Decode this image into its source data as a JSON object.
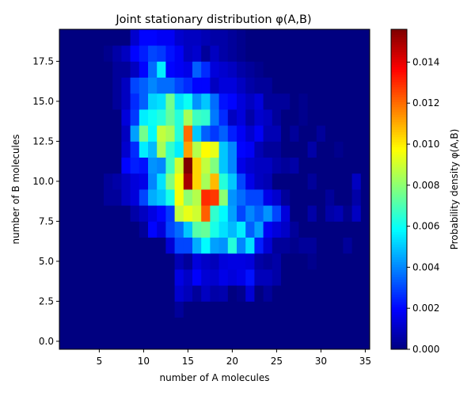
{
  "chart_data": {
    "type": "heatmap",
    "title": "Joint stationary distribution φ(A,B)",
    "xlabel": "number of A molecules",
    "ylabel": "number of B molecules",
    "xlim": [
      0.5,
      35.5
    ],
    "ylim": [
      -0.5,
      19.5
    ],
    "x_ticks": [
      5,
      10,
      15,
      20,
      25,
      30,
      35
    ],
    "x_tick_labels": [
      "5",
      "10",
      "15",
      "20",
      "25",
      "30",
      "35"
    ],
    "y_ticks": [
      0.0,
      2.5,
      5.0,
      7.5,
      10.0,
      12.5,
      15.0,
      17.5
    ],
    "y_tick_labels": [
      "0.0",
      "2.5",
      "5.0",
      "7.5",
      "10.0",
      "12.5",
      "15.0",
      "17.5"
    ],
    "x_bins": [
      1,
      2,
      3,
      4,
      5,
      6,
      7,
      8,
      9,
      10,
      11,
      12,
      13,
      14,
      15,
      16,
      17,
      18,
      19,
      20,
      21,
      22,
      23,
      24,
      25,
      26,
      27,
      28,
      29,
      30,
      31,
      32,
      33,
      34,
      35
    ],
    "y_bins": [
      0,
      1,
      2,
      3,
      4,
      5,
      6,
      7,
      8,
      9,
      10,
      11,
      12,
      13,
      14,
      15,
      16,
      17,
      18,
      19
    ],
    "colormap": "jet",
    "colorbar": {
      "label": "Probability density φ(A,B)",
      "range": [
        0,
        0.0156
      ],
      "ticks": [
        0.0,
        0.002,
        0.004,
        0.006,
        0.008,
        0.01,
        0.012,
        0.014
      ],
      "tick_labels": [
        "0.000",
        "0.002",
        "0.004",
        "0.006",
        "0.008",
        "0.010",
        "0.012",
        "0.014"
      ]
    },
    "values": [
      [
        0,
        0,
        0,
        0,
        0,
        0,
        0,
        0,
        0,
        0,
        0,
        0,
        0,
        0,
        0,
        0,
        0,
        0,
        0,
        0,
        0,
        0,
        0,
        0,
        0,
        0,
        0,
        0,
        0,
        0,
        0,
        0,
        0,
        0,
        0
      ],
      [
        0,
        0,
        0,
        0,
        0,
        0,
        0,
        0,
        0,
        0,
        0,
        0,
        0,
        0,
        0,
        0,
        0,
        0,
        0,
        0,
        0,
        0,
        0,
        0,
        0,
        0,
        0,
        0,
        0,
        0,
        0,
        0,
        0,
        0,
        0
      ],
      [
        0,
        0,
        0,
        0,
        0,
        0,
        0,
        0,
        0,
        0,
        0,
        0,
        0,
        0.0004,
        0,
        0,
        0,
        0,
        0,
        0,
        0,
        0,
        0,
        0,
        0,
        0,
        0,
        0,
        0,
        0,
        0,
        0,
        0,
        0,
        0
      ],
      [
        0,
        0,
        0,
        0,
        0,
        0,
        0,
        0,
        0,
        0,
        0,
        0,
        0,
        0.0012,
        0.0009,
        0.0004,
        0.001,
        0.0006,
        0.0007,
        0,
        0.0002,
        0.0013,
        0,
        0.0004,
        0,
        0,
        0,
        0,
        0,
        0,
        0,
        0,
        0,
        0,
        0
      ],
      [
        0,
        0,
        0,
        0,
        0,
        0,
        0,
        0,
        0,
        0,
        0,
        0,
        0,
        0.0015,
        0.0011,
        0.0019,
        0.0013,
        0.0012,
        0.0016,
        0.0014,
        0.0016,
        0.0022,
        0.0009,
        0.0009,
        0.0006,
        0,
        0,
        0,
        0,
        0,
        0,
        0,
        0,
        0,
        0
      ],
      [
        0,
        0,
        0,
        0,
        0,
        0,
        0,
        0,
        0,
        0,
        0,
        0,
        0,
        0.0008,
        0.0004,
        0.0014,
        0.0011,
        0.0009,
        0.0014,
        0.0015,
        0.0015,
        0.0014,
        0.0006,
        0.0004,
        0.0006,
        0,
        0,
        0,
        0.0002,
        0,
        0,
        0,
        0,
        0,
        0
      ],
      [
        0,
        0,
        0,
        0,
        0,
        0,
        0,
        0,
        0,
        0,
        0,
        0,
        0.0013,
        0.003,
        0.003,
        0.0046,
        0.0058,
        0.0044,
        0.0042,
        0.0064,
        0.004,
        0.0054,
        0.0024,
        0.0013,
        0.0004,
        0.0004,
        0.0002,
        0.0004,
        0.0004,
        0,
        0,
        0,
        0.0004,
        0,
        0
      ],
      [
        0,
        0,
        0,
        0,
        0,
        0,
        0,
        0,
        0,
        0.0004,
        0.002,
        0.0014,
        0.003,
        0.0036,
        0.005,
        0.0072,
        0.0074,
        0.0062,
        0.0054,
        0.0048,
        0.0056,
        0.0034,
        0.0044,
        0.0018,
        0.0014,
        0.0011,
        0.0004,
        0,
        0,
        0,
        0,
        0,
        0,
        0,
        0
      ],
      [
        0,
        0,
        0,
        0,
        0,
        0,
        0,
        0,
        0.0006,
        0.001,
        0.0015,
        0.002,
        0.0028,
        0.0088,
        0.0094,
        0.009,
        0.0122,
        0.0066,
        0.0058,
        0.0044,
        0.003,
        0.004,
        0.0034,
        0.0042,
        0.003,
        0.0014,
        0,
        0,
        0.0006,
        0,
        0.0006,
        0.0008,
        0.0002,
        0.001,
        0
      ],
      [
        0,
        0,
        0,
        0,
        0,
        0.0004,
        0.0004,
        0.001,
        0.0014,
        0.003,
        0.0046,
        0.005,
        0.0062,
        0.0096,
        0.008,
        0.0086,
        0.013,
        0.0128,
        0.008,
        0.0042,
        0.0036,
        0.003,
        0.003,
        0.0016,
        0.0012,
        0.0004,
        0,
        0,
        0,
        0,
        0.0004,
        0,
        0,
        0.0006,
        0
      ],
      [
        0,
        0,
        0,
        0,
        0,
        0.0004,
        0.0006,
        0.001,
        0.0014,
        0.0016,
        0.004,
        0.0054,
        0.0078,
        0.0096,
        0.015,
        0.0104,
        0.0084,
        0.0108,
        0.0064,
        0.005,
        0.003,
        0.0016,
        0.001,
        0.0008,
        0,
        0,
        0,
        0,
        0.0004,
        0,
        0,
        0,
        0,
        0.001,
        0
      ],
      [
        0,
        0,
        0,
        0,
        0,
        0,
        0,
        0.002,
        0.0024,
        0.0022,
        0.0042,
        0.004,
        0.0068,
        0.009,
        0.0156,
        0.0104,
        0.0088,
        0.0078,
        0.005,
        0.004,
        0.0016,
        0.0012,
        0.001,
        0.001,
        0.0006,
        0.0004,
        0.0006,
        0,
        0,
        0,
        0,
        0,
        0,
        0,
        0
      ],
      [
        0,
        0,
        0,
        0,
        0,
        0,
        0,
        0.0012,
        0.0026,
        0.0056,
        0.0048,
        0.0084,
        0.0066,
        0.0056,
        0.0112,
        0.0086,
        0.0098,
        0.0094,
        0.005,
        0.004,
        0.002,
        0.0018,
        0.0008,
        0.0004,
        0.0004,
        0,
        0,
        0,
        0.0006,
        0,
        0,
        0.0002,
        0,
        0,
        0
      ],
      [
        0,
        0,
        0,
        0,
        0,
        0,
        0,
        0.001,
        0.0044,
        0.0076,
        0.0058,
        0.0088,
        0.0084,
        0.0064,
        0.012,
        0.005,
        0.0034,
        0.0028,
        0.0034,
        0.0024,
        0.0018,
        0.0012,
        0.0018,
        0.0008,
        0.0008,
        0,
        0.0004,
        0,
        0,
        0.0004,
        0,
        0,
        0,
        0,
        0
      ],
      [
        0,
        0,
        0,
        0,
        0,
        0,
        0,
        0.0014,
        0.0028,
        0.0056,
        0.006,
        0.0064,
        0.0074,
        0.0064,
        0.0084,
        0.0068,
        0.0066,
        0.0038,
        0.0026,
        0.001,
        0.0014,
        0.0006,
        0.0012,
        0.001,
        0.0004,
        0,
        0,
        0.0002,
        0,
        0,
        0,
        0,
        0,
        0,
        0
      ],
      [
        0,
        0,
        0,
        0,
        0,
        0,
        0.0004,
        0.001,
        0.0026,
        0.0034,
        0.0052,
        0.0054,
        0.0076,
        0.0054,
        0.006,
        0.0042,
        0.005,
        0.0036,
        0.0022,
        0.002,
        0.0014,
        0.001,
        0.0014,
        0.0004,
        0.0004,
        0.0004,
        0,
        0.0002,
        0,
        0,
        0,
        0,
        0,
        0,
        0
      ],
      [
        0,
        0,
        0,
        0,
        0,
        0,
        0.0004,
        0.001,
        0.003,
        0.0034,
        0.004,
        0.0036,
        0.0036,
        0.003,
        0.0026,
        0.002,
        0.002,
        0.001,
        0.0014,
        0.0014,
        0.001,
        0.0006,
        0.0004,
        0.0004,
        0,
        0,
        0,
        0,
        0,
        0,
        0,
        0,
        0,
        0,
        0
      ],
      [
        0,
        0,
        0,
        0,
        0,
        0,
        0.0004,
        0.0004,
        0.001,
        0.002,
        0.0036,
        0.0056,
        0.002,
        0.0018,
        0.0016,
        0.0034,
        0.0026,
        0.0014,
        0.0012,
        0.001,
        0.0006,
        0.0004,
        0.0002,
        0,
        0,
        0,
        0,
        0,
        0,
        0,
        0,
        0,
        0,
        0,
        0
      ],
      [
        0,
        0,
        0,
        0,
        0,
        0.0002,
        0.0006,
        0.001,
        0.002,
        0.0024,
        0.003,
        0.0028,
        0.0022,
        0.0018,
        0.001,
        0.0012,
        0.0004,
        0.001,
        0.0006,
        0.0004,
        0.0002,
        0,
        0,
        0,
        0,
        0,
        0,
        0,
        0,
        0,
        0,
        0,
        0,
        0,
        0
      ],
      [
        0,
        0,
        0,
        0,
        0,
        0,
        0,
        0,
        0.0012,
        0.002,
        0.002,
        0.0018,
        0.0018,
        0.0012,
        0.001,
        0.001,
        0.0008,
        0.0006,
        0.0006,
        0.0004,
        0.0002,
        0,
        0,
        0,
        0,
        0,
        0,
        0,
        0,
        0,
        0,
        0,
        0,
        0,
        0
      ]
    ]
  }
}
